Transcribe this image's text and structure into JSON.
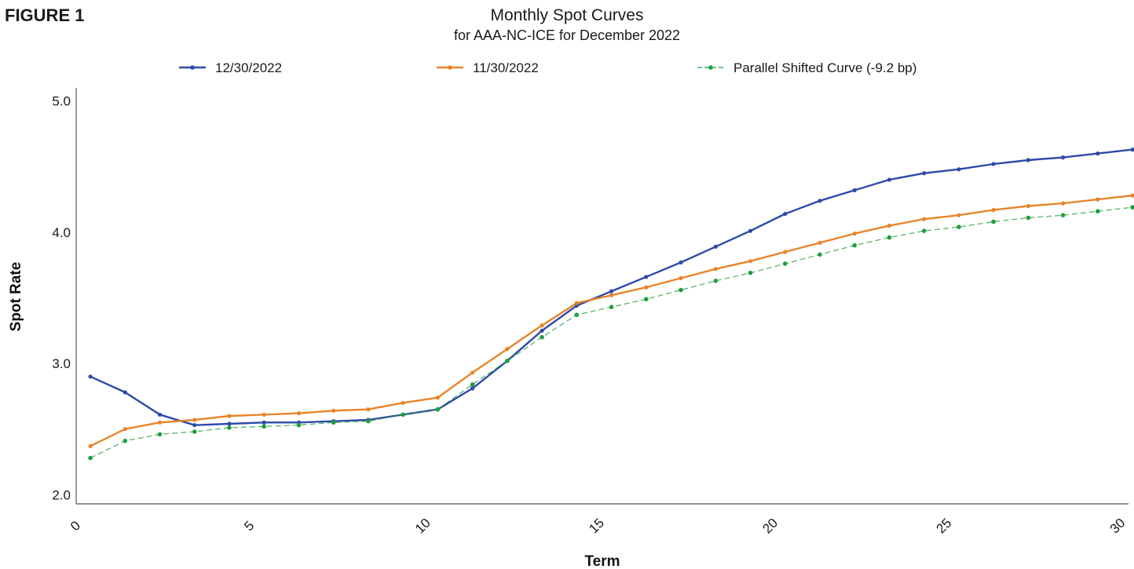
{
  "figure_label": "FIGURE 1",
  "chart_data": {
    "type": "line",
    "title": "Monthly Spot Curves",
    "subtitle": "for AAA-NC-ICE for December 2022",
    "xlabel": "Term",
    "ylabel": "Spot Rate",
    "xlim": [
      0,
      30
    ],
    "ylim": [
      1.93,
      5.1
    ],
    "x_ticks": [
      0,
      5,
      10,
      15,
      20,
      25,
      30
    ],
    "x_tick_labels": [
      "0",
      "5",
      "10",
      "15",
      "20",
      "25",
      "30"
    ],
    "y_ticks": [
      2.0,
      3.0,
      4.0,
      5.0
    ],
    "y_tick_labels": [
      "2.0",
      "3.0",
      "4.0",
      "5.0"
    ],
    "grid": false,
    "legend_position": "top",
    "x": [
      0.25,
      1.25,
      2.25,
      3.25,
      4.25,
      5.25,
      6.25,
      7.25,
      8.25,
      9.25,
      10.25,
      11.25,
      12.25,
      13.25,
      14.25,
      15.25,
      16.25,
      17.25,
      18.25,
      19.25,
      20.25,
      21.25,
      22.25,
      23.25,
      24.25,
      25.25,
      26.25,
      27.25,
      28.25,
      29.25,
      30.25
    ],
    "series": [
      {
        "name": "12/30/2022",
        "color": "#2e4aa8",
        "style": "solid",
        "values": [
          2.9,
          2.78,
          2.61,
          2.53,
          2.54,
          2.55,
          2.55,
          2.56,
          2.57,
          2.61,
          2.65,
          2.81,
          3.02,
          3.25,
          3.44,
          3.55,
          3.66,
          3.77,
          3.89,
          4.01,
          4.14,
          4.24,
          4.32,
          4.4,
          4.45,
          4.48,
          4.52,
          4.55,
          4.57,
          4.6,
          4.63
        ]
      },
      {
        "name": "11/30/2022",
        "color": "#e8842a",
        "style": "solid",
        "values": [
          2.37,
          2.5,
          2.55,
          2.57,
          2.6,
          2.61,
          2.62,
          2.64,
          2.65,
          2.7,
          2.74,
          2.93,
          3.11,
          3.29,
          3.46,
          3.52,
          3.58,
          3.65,
          3.72,
          3.78,
          3.85,
          3.92,
          3.99,
          4.05,
          4.1,
          4.13,
          4.17,
          4.2,
          4.22,
          4.25,
          4.28
        ]
      },
      {
        "name": "Parallel Shifted Curve (-9.2 bp)",
        "color": "#1f9e3e",
        "style": "dashed",
        "values": [
          2.28,
          2.41,
          2.46,
          2.48,
          2.51,
          2.52,
          2.53,
          2.55,
          2.56,
          2.61,
          2.65,
          2.84,
          3.02,
          3.2,
          3.37,
          3.43,
          3.49,
          3.56,
          3.63,
          3.69,
          3.76,
          3.83,
          3.9,
          3.96,
          4.01,
          4.04,
          4.08,
          4.11,
          4.13,
          4.16,
          4.19
        ]
      }
    ]
  }
}
